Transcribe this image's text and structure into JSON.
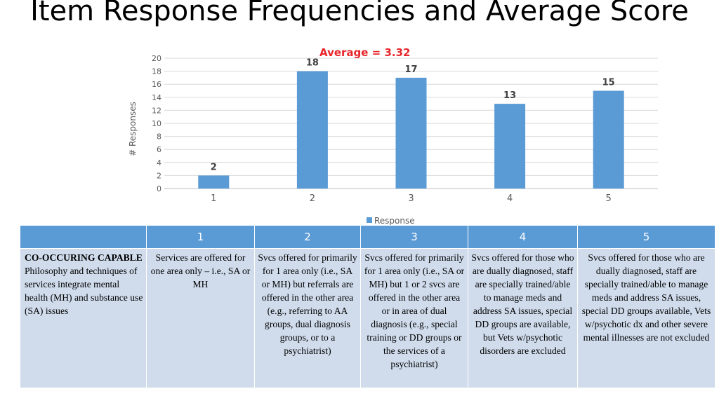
{
  "title": "Item Response Frequencies and Average Score",
  "annotation": "Average = 3.32",
  "chart_data": {
    "type": "bar",
    "categories": [
      "1",
      "2",
      "3",
      "4",
      "5"
    ],
    "series": [
      {
        "name": "Response",
        "values": [
          2,
          18,
          17,
          13,
          15
        ]
      }
    ],
    "ylabel": "# Responses",
    "xlabel": "",
    "ylim": [
      0,
      20
    ],
    "yticks": [
      0,
      2,
      4,
      6,
      8,
      10,
      12,
      14,
      16,
      18,
      20
    ],
    "data_labels": [
      "2",
      "18",
      "17",
      "13",
      "15"
    ],
    "legend": "bottom",
    "grid": true,
    "colors": {
      "bar": "#5b9bd5",
      "grid": "#d9d9d9",
      "annotation": "#e8262b"
    }
  },
  "table": {
    "headers": [
      "",
      "1",
      "2",
      "3",
      "4",
      "5"
    ],
    "row_title": "CO-OCCURING CAPABLE",
    "row_desc": "Philosophy and techniques of services integrate mental health (MH) and substance use (SA) issues",
    "cells": [
      "Services are offered for one area only – i.e., SA or MH",
      "Svcs offered for primarily for 1 area only (i.e., SA or MH) but referrals are offered in the other area (e.g., referring to AA groups, dual diagnosis groups, or to a psychiatrist)",
      "Svcs offered for primarily for 1 area only (i.e., SA or MH) but 1 or 2 svcs are offered in the other area or in area of dual diagnosis (e.g., special training or DD groups or the services of a psychiatrist)",
      "Svcs offered for those who are dually diagnosed, staff are specially trained/able to manage meds and address SA issues, special DD groups are available, but Vets w/psychotic disorders are excluded",
      "Svcs offered for those who are dually diagnosed, staff are specially trained/able to manage meds and address SA issues, special DD groups available, Vets w/psychotic dx and other severe mental illnesses are not excluded"
    ],
    "colors": {
      "header": "#5b9bd5",
      "cell": "#d0dcec"
    }
  }
}
